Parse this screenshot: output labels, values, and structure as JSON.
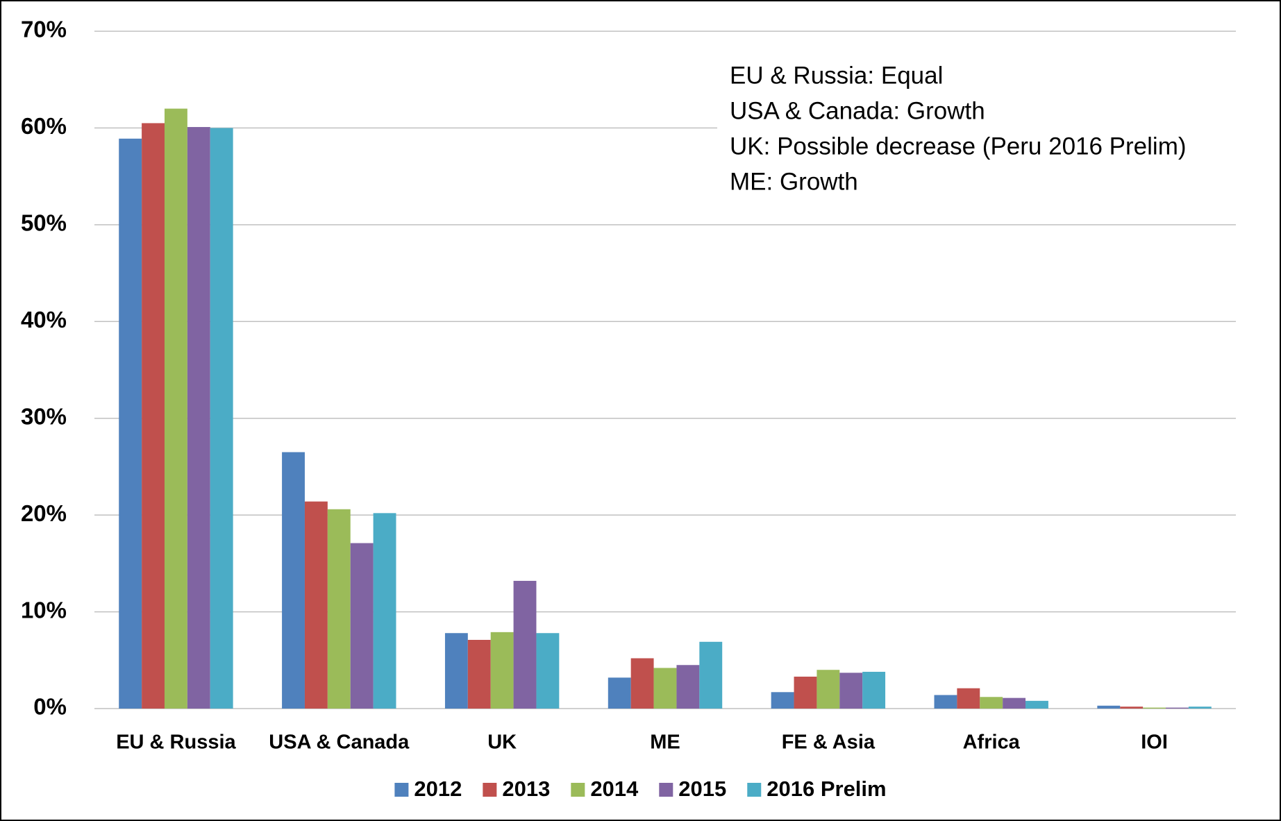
{
  "chart_data": {
    "type": "bar",
    "categories": [
      "EU & Russia",
      "USA & Canada",
      "UK",
      "ME",
      "FE & Asia",
      "Africa",
      "IOI"
    ],
    "series": [
      {
        "name": "2012",
        "color": "#4f81bd",
        "values": [
          58.9,
          26.5,
          7.8,
          3.2,
          1.7,
          1.4,
          0.3
        ]
      },
      {
        "name": "2013",
        "color": "#c0504d",
        "values": [
          60.5,
          21.4,
          7.1,
          5.2,
          3.3,
          2.1,
          0.2
        ]
      },
      {
        "name": "2014",
        "color": "#9bbb59",
        "values": [
          62.0,
          20.6,
          7.9,
          4.2,
          4.0,
          1.2,
          0.1
        ]
      },
      {
        "name": "2015",
        "color": "#8064a2",
        "values": [
          60.1,
          17.1,
          13.2,
          4.5,
          3.7,
          1.1,
          0.1
        ]
      },
      {
        "name": "2016 Prelim",
        "color": "#4bacc6",
        "values": [
          60.0,
          20.2,
          7.8,
          6.9,
          3.8,
          0.8,
          0.2
        ]
      }
    ],
    "ylim": [
      0,
      70
    ],
    "yticks": [
      {
        "value": 0,
        "label": "0%"
      },
      {
        "value": 10,
        "label": "10%"
      },
      {
        "value": 20,
        "label": "20%"
      },
      {
        "value": 30,
        "label": "30%"
      },
      {
        "value": 40,
        "label": "40%"
      },
      {
        "value": 50,
        "label": "50%"
      },
      {
        "value": 60,
        "label": "60%"
      },
      {
        "value": 70,
        "label": "70%"
      }
    ],
    "grid": true,
    "legend": "bottom",
    "annotations": [
      "EU & Russia: Equal",
      "USA & Canada: Growth",
      "UK: Possible decrease (Peru 2016 Prelim)",
      "ME: Growth"
    ]
  }
}
